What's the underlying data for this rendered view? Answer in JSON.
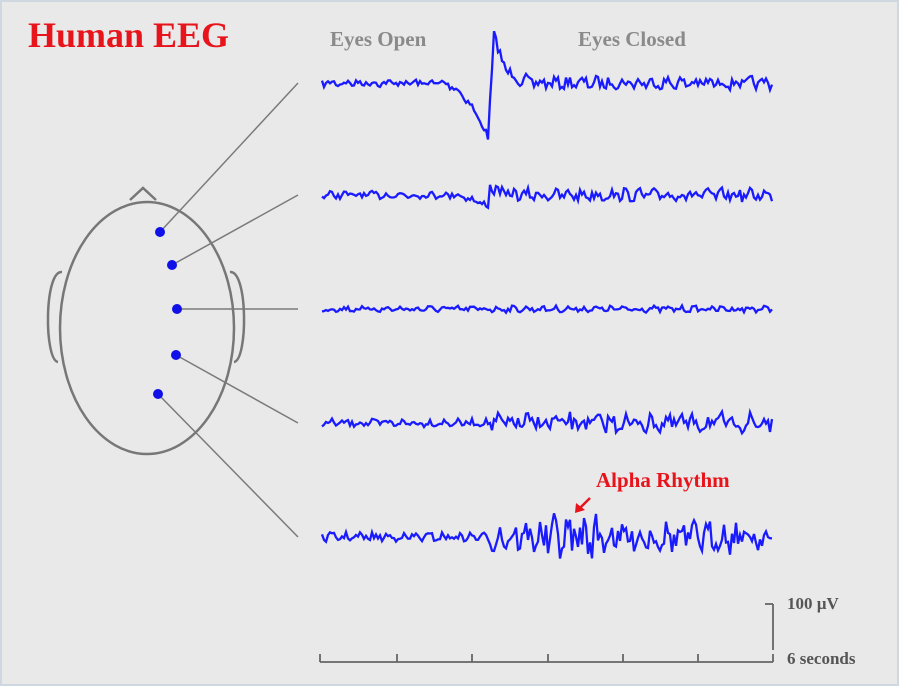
{
  "header": {
    "title": "Human EEG"
  },
  "labels": {
    "eyes_open": "Eyes Open",
    "eyes_closed": "Eyes Closed",
    "alpha": "Alpha Rhythm"
  },
  "scale": {
    "amplitude": "100 µV",
    "time": "6 seconds"
  }
}
